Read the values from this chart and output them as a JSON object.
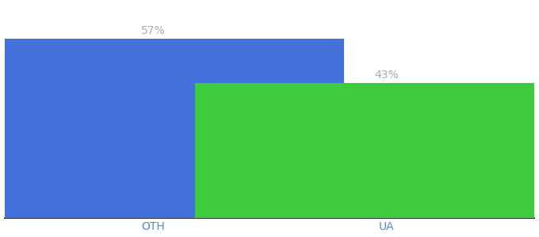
{
  "categories": [
    "OTH",
    "UA"
  ],
  "values": [
    57,
    43
  ],
  "bar_colors": [
    "#4472db",
    "#3ecc3e"
  ],
  "label_texts": [
    "57%",
    "43%"
  ],
  "label_color": "#aaaaaa",
  "ylim": [
    0,
    68
  ],
  "background_color": "#ffffff",
  "label_fontsize": 10,
  "tick_fontsize": 10,
  "tick_color": "#5588cc",
  "bar_width": 0.72,
  "x_positions": [
    0.28,
    0.72
  ],
  "xlim": [
    0.0,
    1.0
  ],
  "figsize": [
    6.8,
    3.0
  ],
  "dpi": 100
}
